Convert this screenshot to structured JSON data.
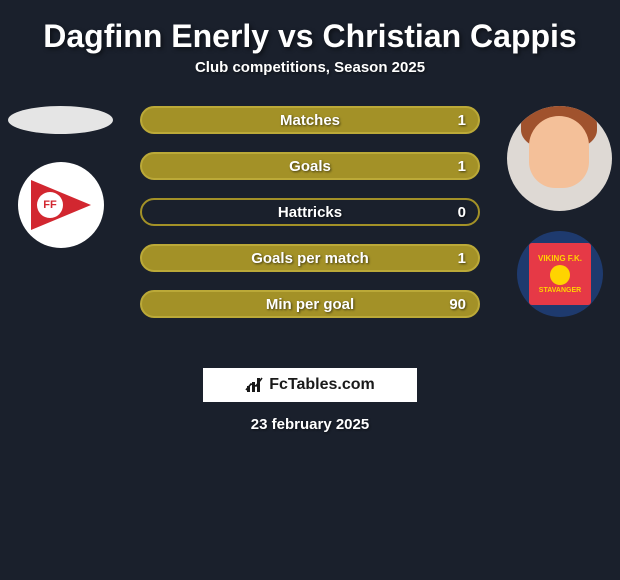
{
  "title": "Dagfinn Enerly vs Christian Cappis",
  "subtitle": "Club competitions, Season 2025",
  "stats": [
    {
      "label": "Matches",
      "value_right": "1",
      "bg": "#a39127",
      "border": "#bba938"
    },
    {
      "label": "Goals",
      "value_right": "1",
      "bg": "#a39127",
      "border": "#bba938"
    },
    {
      "label": "Hattricks",
      "value_right": "0",
      "bg": "transparent",
      "border": "#a39127"
    },
    {
      "label": "Goals per match",
      "value_right": "1",
      "bg": "#a39127",
      "border": "#bba938"
    },
    {
      "label": "Min per goal",
      "value_right": "90",
      "bg": "#a39127",
      "border": "#bba938"
    }
  ],
  "left_player": {
    "placeholder_color": "#e5e5e5",
    "club_logo_bg": "#ffffff",
    "club_flag_color": "#d22730",
    "club_initials": "FF"
  },
  "right_player": {
    "avatar_bg": "#ded9d4",
    "hair_color": "#a0522d",
    "skin_color": "#f4c099",
    "club_logo_bg": "#1e3a6e",
    "club_inner_bg": "#e63946",
    "club_text_top": "VIKING F.K.",
    "club_text_bot": "STAVANGER",
    "club_accent": "#ffd400"
  },
  "brand": {
    "text": "FcTables.com",
    "box_bg": "#ffffff",
    "text_color": "#1a1a1a"
  },
  "date": "23 february 2025",
  "colors": {
    "page_bg": "#1a202c",
    "text": "#ffffff"
  }
}
